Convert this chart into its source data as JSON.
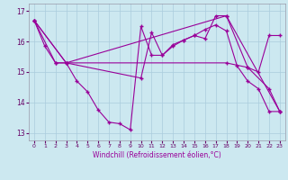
{
  "background_color": "#cce8f0",
  "grid_color": "#aaccdd",
  "line_color": "#990099",
  "xlabel": "Windchill (Refroidissement éolien,°C)",
  "xlim": [
    -0.5,
    23.5
  ],
  "ylim": [
    12.75,
    17.25
  ],
  "yticks": [
    13,
    14,
    15,
    16,
    17
  ],
  "xticks": [
    0,
    1,
    2,
    3,
    4,
    5,
    6,
    7,
    8,
    9,
    10,
    11,
    12,
    13,
    14,
    15,
    16,
    17,
    18,
    19,
    20,
    21,
    22,
    23
  ],
  "line1_x": [
    0,
    1,
    2,
    3,
    4,
    5,
    6,
    7,
    8,
    9,
    10,
    11,
    12,
    13,
    14,
    15,
    16,
    17,
    18,
    19,
    20,
    21,
    22,
    23
  ],
  "line1_y": [
    16.7,
    15.85,
    15.3,
    15.3,
    14.7,
    14.35,
    13.75,
    13.35,
    13.3,
    13.1,
    16.5,
    15.55,
    15.55,
    15.9,
    16.05,
    16.2,
    16.4,
    16.55,
    16.35,
    15.2,
    14.7,
    14.45,
    13.7,
    13.7
  ],
  "line2_x": [
    0,
    2,
    3,
    10,
    11,
    12,
    13,
    14,
    15,
    16,
    17,
    18,
    20,
    21,
    22,
    23
  ],
  "line2_y": [
    16.7,
    15.3,
    15.3,
    14.8,
    16.3,
    15.55,
    15.85,
    16.05,
    16.2,
    16.1,
    16.85,
    16.85,
    15.15,
    15.0,
    16.2,
    16.2
  ],
  "line3_x": [
    0,
    3,
    18,
    20,
    22,
    23
  ],
  "line3_y": [
    16.7,
    15.3,
    15.3,
    15.15,
    14.45,
    13.7
  ],
  "line4_x": [
    0,
    3,
    18,
    23
  ],
  "line4_y": [
    16.7,
    15.3,
    16.85,
    13.7
  ]
}
